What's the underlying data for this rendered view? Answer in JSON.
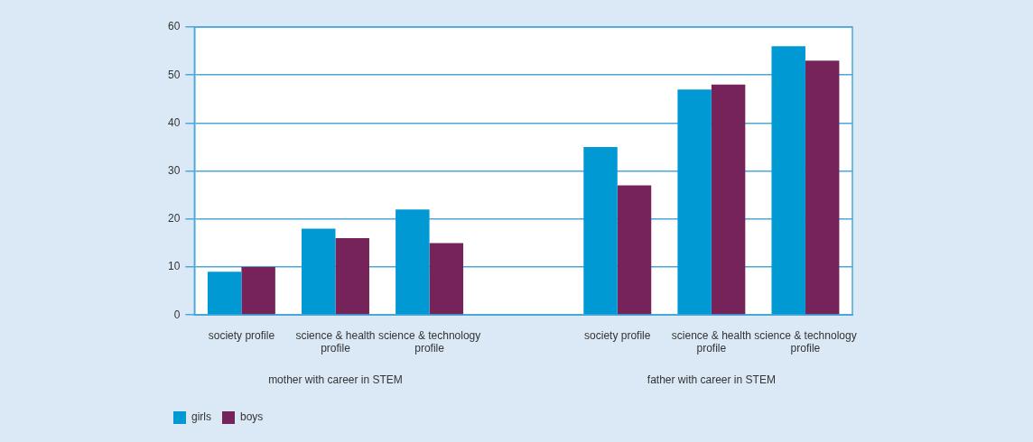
{
  "chart_data": {
    "type": "bar",
    "categories": [
      "society profile",
      "science & health profile",
      "science & technology profile",
      null,
      "society profile",
      "science & health profile",
      "science & technology profile"
    ],
    "series": [
      {
        "name": "girls",
        "color": "#0099d4",
        "values": [
          9,
          18,
          22,
          null,
          35,
          47,
          56
        ]
      },
      {
        "name": "boys",
        "color": "#76235a",
        "values": [
          10,
          16,
          15,
          null,
          27,
          48,
          53
        ]
      }
    ],
    "ylim": [
      0,
      60
    ],
    "yticks": [
      0,
      10,
      20,
      30,
      40,
      50,
      60
    ],
    "grid": "y",
    "legend": "bottom left",
    "annotations": [
      "mother with career in STEM",
      "father with career in STEM"
    ]
  }
}
